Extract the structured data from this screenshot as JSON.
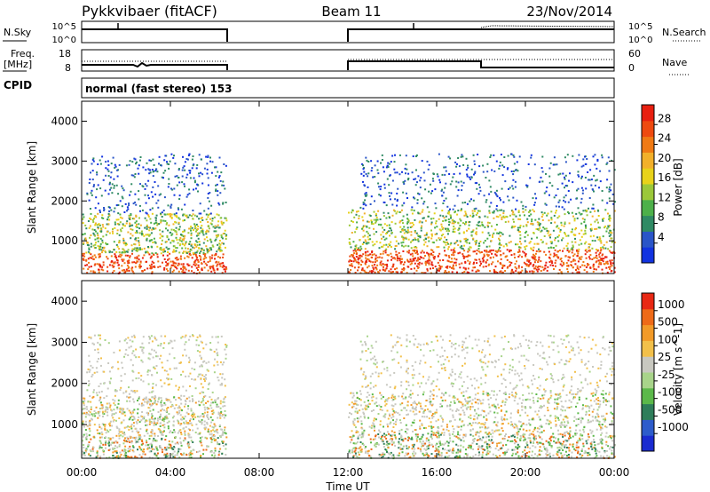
{
  "header": {
    "station": "Pykkvibaer (fitACF)",
    "beam": "Beam 11",
    "date": "23/Nov/2014"
  },
  "panels": {
    "nsky_label": "N.Sky",
    "nsearch_label": "N.Search",
    "freq_label_1": "Freq.",
    "freq_label_2": "[MHz]",
    "nave_label": "Nave",
    "cpid_label": "CPID",
    "cpid_value": "normal (fast stereo) 153",
    "nsky_ticks": [
      "10^5",
      "10^0"
    ],
    "nsearch_ticks": [
      "10^5",
      "10^0"
    ],
    "freq_ticks": [
      "18",
      "8"
    ],
    "nave_ticks": [
      "60",
      "0"
    ]
  },
  "chart_data": [
    {
      "type": "heatmap",
      "name": "power",
      "ylabel": "Slant Range [km]",
      "xlabel": "",
      "xticks": [
        "00:00",
        "04:00",
        "08:00",
        "12:00",
        "16:00",
        "20:00",
        "00:00"
      ],
      "yticks": [
        1000,
        2000,
        3000,
        4000
      ],
      "xlim_hours": [
        0,
        24
      ],
      "ylim": [
        180,
        4500
      ],
      "colorbar_label": "Power [dB]",
      "colorbar_ticks": [
        4,
        8,
        12,
        16,
        20,
        24,
        28
      ],
      "colorbar_colors": [
        "#1233e0",
        "#2a55c8",
        "#2f8a64",
        "#4db04a",
        "#9bc83a",
        "#e8d21a",
        "#f2b02a",
        "#f07a14",
        "#ee4a10",
        "#e81f10"
      ],
      "data_hours": [
        [
          0,
          6.5
        ],
        [
          12,
          24
        ]
      ]
    },
    {
      "type": "heatmap",
      "name": "velocity",
      "ylabel": "Slant Range [km]",
      "xlabel": "Time UT",
      "xticks": [
        "00:00",
        "04:00",
        "08:00",
        "12:00",
        "16:00",
        "20:00",
        "00:00"
      ],
      "yticks": [
        1000,
        2000,
        3000,
        4000
      ],
      "xlim_hours": [
        0,
        24
      ],
      "ylim": [
        180,
        4500
      ],
      "colorbar_label": "Velocity [m s^-1]",
      "colorbar_ticks": [
        "1000",
        "500",
        "100",
        "25",
        "-25",
        "-100",
        "-500",
        "-1000"
      ],
      "colorbar_colors": [
        "#1a2bd0",
        "#2d5ccb",
        "#2e7d5a",
        "#5bb84a",
        "#a8d48a",
        "#c8c8c0",
        "#f2c04a",
        "#f29a28",
        "#ee6a18",
        "#e82814"
      ],
      "data_hours": [
        [
          0,
          6.5
        ],
        [
          12,
          24
        ]
      ]
    }
  ]
}
